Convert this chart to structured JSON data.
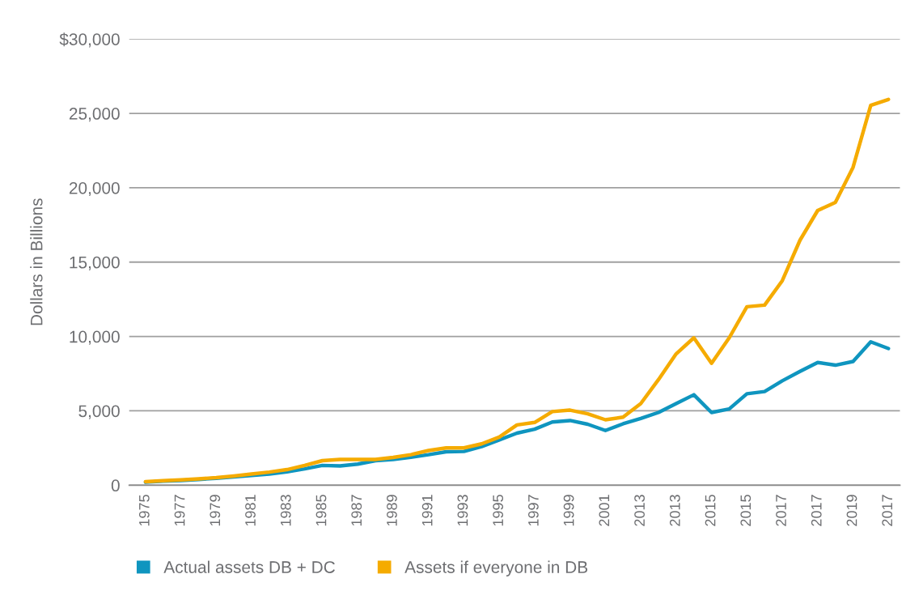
{
  "chart_data": {
    "type": "line",
    "ylabel": "Dollars in Billions",
    "categories": [
      "1975",
      null,
      "1977",
      null,
      "1979",
      null,
      "1981",
      null,
      "1983",
      null,
      "1985",
      null,
      "1987",
      null,
      "1989",
      null,
      "1991",
      null,
      "1993",
      null,
      "1995",
      null,
      "1997",
      null,
      "1999",
      null,
      "2001",
      null,
      "2013",
      null,
      "2013",
      null,
      "2015",
      null,
      "2015",
      null,
      "2017",
      null,
      "2017",
      null,
      "2019",
      null,
      "2017"
    ],
    "series": [
      {
        "name": "Actual assets DB + DC",
        "color": "#0f95bf",
        "values": [
          200,
          270,
          320,
          390,
          470,
          560,
          650,
          750,
          900,
          1100,
          1330,
          1300,
          1420,
          1650,
          1730,
          1880,
          2050,
          2250,
          2270,
          2600,
          3050,
          3500,
          3770,
          4250,
          4350,
          4100,
          3680,
          4130,
          4490,
          4890,
          5490,
          6080,
          4890,
          5130,
          6150,
          6300,
          7020,
          7650,
          8250,
          8070,
          8320,
          9640,
          9190
        ]
      },
      {
        "name": "Assets if everyone in DB",
        "color": "#f5ab00",
        "values": [
          240,
          300,
          360,
          430,
          510,
          620,
          750,
          880,
          1050,
          1330,
          1650,
          1730,
          1730,
          1730,
          1870,
          2050,
          2330,
          2510,
          2510,
          2780,
          3240,
          4050,
          4220,
          4950,
          5050,
          4800,
          4400,
          4580,
          5490,
          7100,
          8830,
          9910,
          8200,
          9910,
          12000,
          12110,
          13750,
          16470,
          18470,
          19010,
          21370,
          25540,
          25940
        ]
      }
    ],
    "ylim": [
      0,
      30000
    ],
    "yticks": [
      0,
      {
        "value": 5000,
        "label": "5,000"
      },
      {
        "value": 10000,
        "label": "10,000"
      },
      {
        "value": 15000,
        "label": "15,000"
      },
      {
        "value": 20000,
        "label": "20,000"
      },
      {
        "value": 25000,
        "label": "25,000"
      },
      {
        "value": 30000,
        "label": "$30,000"
      }
    ],
    "grid": "y",
    "legend": "bottom left",
    "marker": "none",
    "line_style": "solid"
  }
}
